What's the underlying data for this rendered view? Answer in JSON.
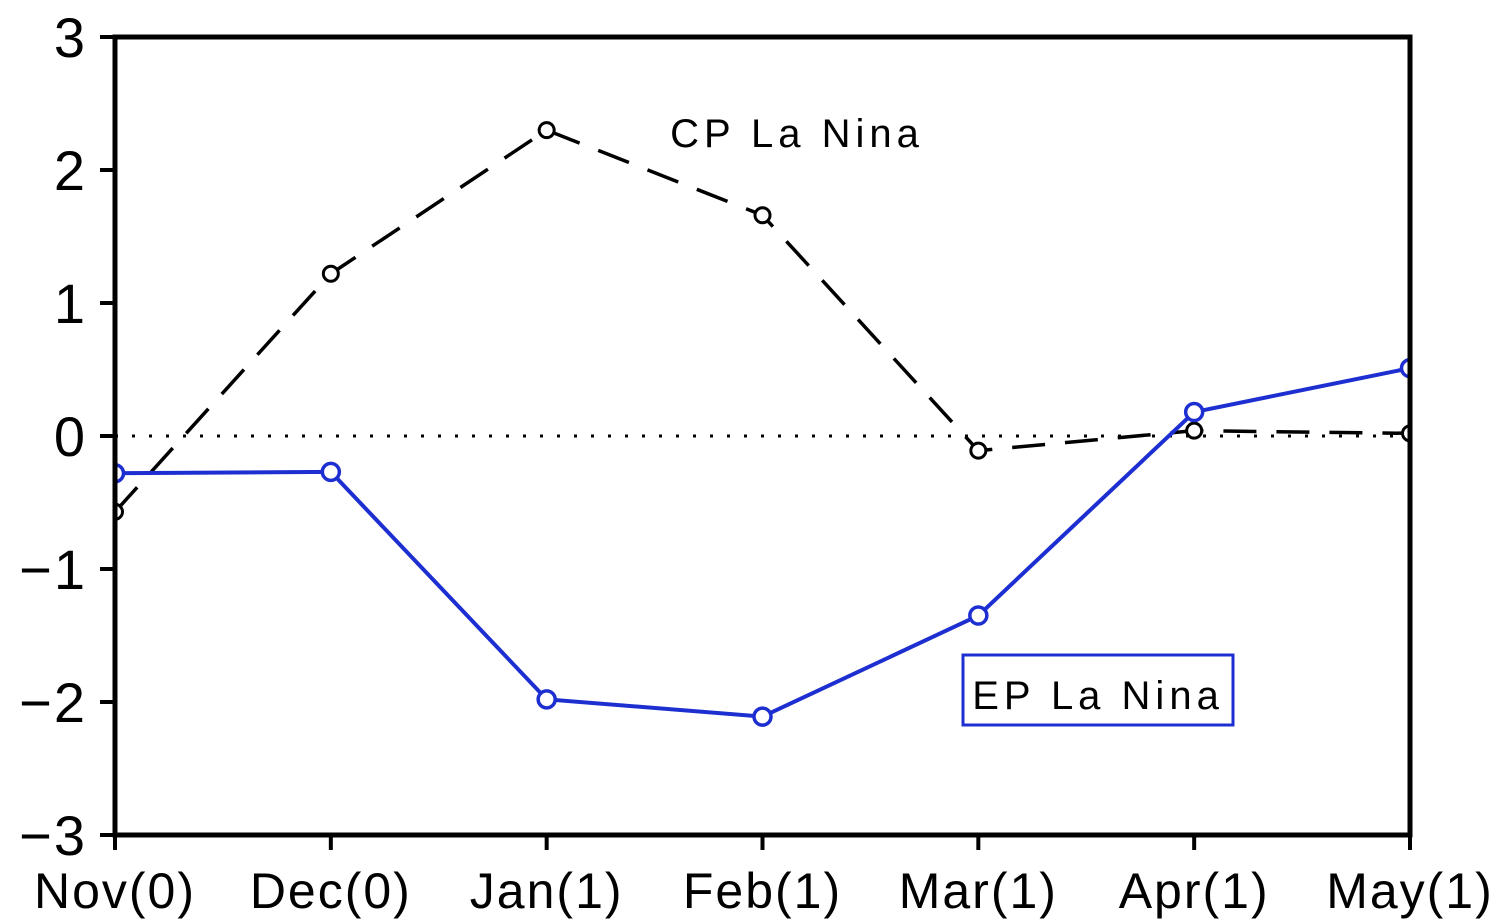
{
  "figure": {
    "background": "#ffffff",
    "axis_color": "#000000"
  },
  "chart_data": {
    "type": "line",
    "title": "",
    "xlabel": "",
    "ylabel": "",
    "categories": [
      "Nov(0)",
      "Dec(0)",
      "Jan(1)",
      "Feb(1)",
      "Mar(1)",
      "Apr(1)",
      "May(1)"
    ],
    "y_ticks": [
      "3",
      "2",
      "1",
      "0",
      "−1",
      "−2",
      "−3"
    ],
    "y_tick_values": [
      3,
      2,
      1,
      0,
      -1,
      -2,
      -3
    ],
    "ylim": [
      -3,
      3
    ],
    "grid": false,
    "zero_line": true,
    "legend_position": "inside-plot",
    "series": [
      {
        "name": "CP La Nina",
        "color": "#000000",
        "line_style": "dashed",
        "marker": "open-circle",
        "values": [
          -0.57,
          1.22,
          2.3,
          1.66,
          -0.11,
          0.04,
          0.02
        ]
      },
      {
        "name": "EP La Nina",
        "color": "#1d2fd0",
        "line_style": "solid",
        "marker": "open-circle",
        "values": [
          -0.28,
          -0.27,
          -1.98,
          -2.11,
          -1.35,
          0.18,
          0.51
        ]
      }
    ],
    "annotations": [
      {
        "text": "CP La Nina",
        "boxed": false,
        "text_color": "#000000"
      },
      {
        "text": "EP La Nina",
        "boxed": true,
        "box_color": "#1d2fd0",
        "text_color": "#000000"
      }
    ]
  }
}
